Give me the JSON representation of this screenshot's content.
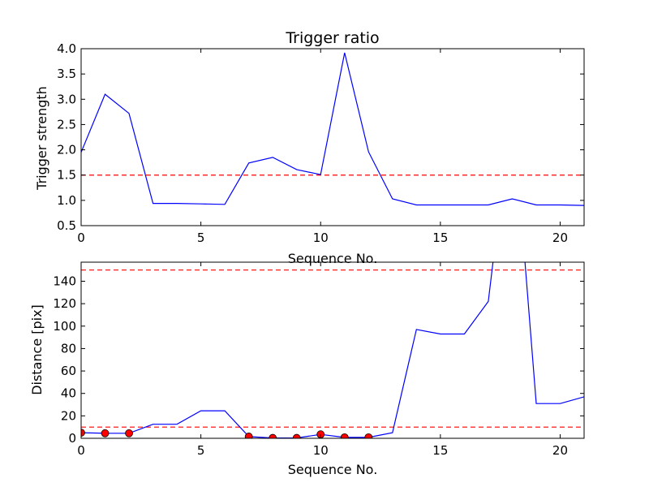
{
  "chart_data": [
    {
      "type": "line",
      "title": "Trigger ratio",
      "xlabel": "Sequence No.",
      "ylabel": "Trigger strength",
      "xlim": [
        0,
        21
      ],
      "ylim": [
        0.5,
        4.0
      ],
      "xticks": [
        "0",
        "5",
        "10",
        "15",
        "20"
      ],
      "yticks": [
        "0.5",
        "1.0",
        "1.5",
        "2.0",
        "2.5",
        "3.0",
        "3.5",
        "4.0"
      ],
      "grid": false,
      "colors": {
        "line": "#0000ff",
        "threshold": "#ff0000"
      },
      "series": [
        {
          "x": [
            0,
            1,
            2,
            3,
            4,
            5,
            6,
            7,
            8,
            9,
            10,
            11,
            12,
            13,
            14,
            15,
            16,
            17,
            18,
            19,
            20,
            21
          ],
          "values": [
            1.95,
            3.1,
            2.72,
            0.94,
            0.94,
            0.93,
            0.92,
            1.74,
            1.85,
            1.61,
            1.51,
            3.92,
            1.96,
            1.03,
            0.91,
            0.91,
            0.91,
            0.91,
            1.03,
            0.91,
            0.91,
            0.9
          ]
        }
      ],
      "threshold": 1.5
    },
    {
      "type": "line",
      "title": "",
      "xlabel": "Sequence No.",
      "ylabel": "Distance [pix]",
      "xlim": [
        0,
        21
      ],
      "ylim": [
        0,
        157
      ],
      "xticks": [
        "0",
        "5",
        "10",
        "15",
        "20"
      ],
      "yticks": [
        "0",
        "20",
        "40",
        "60",
        "80",
        "100",
        "120",
        "140"
      ],
      "grid": false,
      "colors": {
        "line": "#0000ff",
        "threshold": "#ff0000",
        "marker": "#ff0000"
      },
      "series": [
        {
          "x": [
            0,
            1,
            2,
            3,
            4,
            5,
            6,
            7,
            8,
            9,
            10,
            11,
            12,
            13,
            14,
            15,
            16,
            17,
            18,
            19,
            20,
            21
          ],
          "values": [
            5,
            4.5,
            4.5,
            12.5,
            12.5,
            24.5,
            24.5,
            1.5,
            0.3,
            0.3,
            3.5,
            0.8,
            0.8,
            5,
            97,
            93,
            93,
            122,
            300,
            31,
            31,
            37
          ]
        }
      ],
      "markers": {
        "x": [
          0,
          1,
          2,
          7,
          8,
          9,
          10,
          11,
          12
        ],
        "values": [
          5,
          4.5,
          4.5,
          1.5,
          0.3,
          0.3,
          3.5,
          0.8,
          0.8
        ]
      },
      "thresholds": [
        10,
        150
      ]
    }
  ]
}
